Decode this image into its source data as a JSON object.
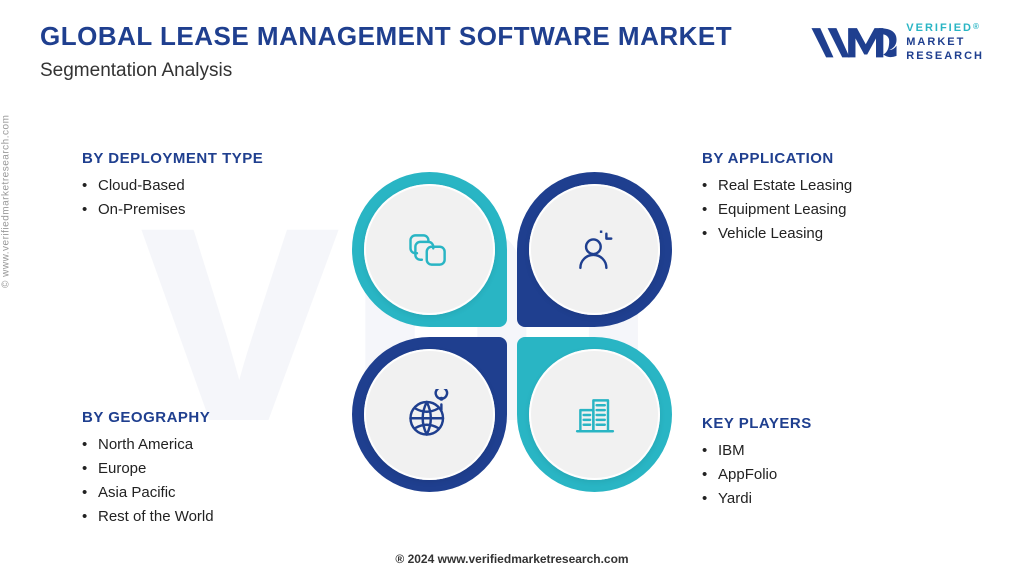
{
  "colors": {
    "dark_blue": "#1f3f8f",
    "teal": "#29b5c4",
    "title_blue": "#1f3f8f",
    "section_heading": "#1f3f8f",
    "subtitle": "#333333",
    "body_text": "#222222",
    "petal_inner_bg": "#f1f1f1",
    "logo_mark": "#1f3f8f",
    "logo_text_top": "#29b5c4",
    "logo_text_rest": "#1f3f8f"
  },
  "title": "GLOBAL LEASE MANAGEMENT SOFTWARE MARKET",
  "subtitle": "Segmentation Analysis",
  "side_watermark": "© www.verifiedmarketresearch.com",
  "footer": "® 2024 www.verifiedmarketresearch.com",
  "logo": {
    "mark_alt": "vm-logo",
    "line1": "VERIFIED",
    "line2": "MARKET",
    "line3": "RESEARCH"
  },
  "sections": {
    "tl": {
      "heading": "BY DEPLOYMENT TYPE",
      "items": [
        "Cloud-Based",
        "On-Premises"
      ],
      "petal_color": "#29b5c4",
      "icon": "stack-icon",
      "icon_color": "#29b5c4"
    },
    "tr": {
      "heading": "BY APPLICATION",
      "items": [
        "Real Estate Leasing",
        "Equipment Leasing",
        "Vehicle Leasing"
      ],
      "petal_color": "#1f3f8f",
      "icon": "person-icon",
      "icon_color": "#1f3f8f"
    },
    "bl": {
      "heading": "BY GEOGRAPHY",
      "items": [
        "North America",
        "Europe",
        "Asia Pacific",
        "Rest of the World"
      ],
      "petal_color": "#1f3f8f",
      "icon": "globe-pin-icon",
      "icon_color": "#1f3f8f"
    },
    "br": {
      "heading": "KEY PLAYERS",
      "items": [
        "IBM",
        "AppFolio",
        "Yardi"
      ],
      "petal_color": "#29b5c4",
      "icon": "buildings-icon",
      "icon_color": "#29b5c4"
    }
  }
}
